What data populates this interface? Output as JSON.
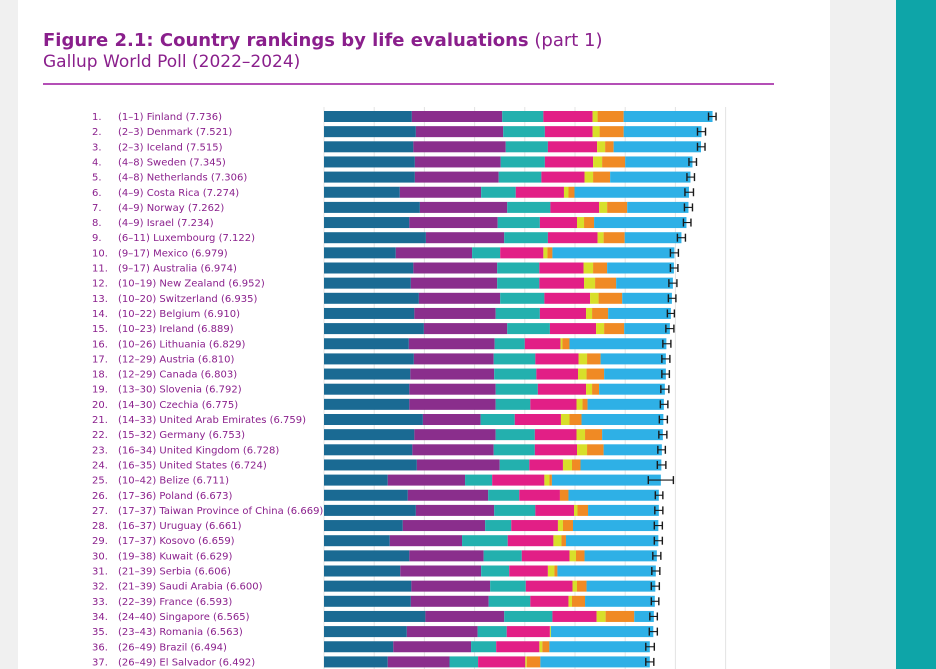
{
  "title_bold": "Figure 2.1: Country rankings by life evaluations",
  "title_part": "(part 1)",
  "subtitle": "Gallup World Poll (2022–2024)",
  "colors": {
    "title": "#8a1f8c",
    "segments": [
      "#1a6a93",
      "#8a2e8c",
      "#23b0ae",
      "#e21f86",
      "#d8df2a",
      "#f08a24",
      "#2eb0e6"
    ],
    "whisker": "#1a1a1a",
    "accent_strip": "#0ea5a8"
  },
  "chart_data": {
    "type": "bar",
    "stacked": true,
    "orientation": "horizontal",
    "title": "Figure 2.1: Country rankings by life evaluations (part 1)",
    "subtitle": "Gallup World Poll (2022–2024)",
    "xlim": [
      0,
      8
    ],
    "grid": true,
    "rows": [
      {
        "rank": "1.",
        "range": "(1–1)",
        "country": "Finland",
        "score": 7.736,
        "segments": [
          1.75,
          1.8,
          0.82,
          0.98,
          0.1,
          0.52,
          1.77
        ],
        "ci": [
          7.66,
          7.81
        ]
      },
      {
        "rank": "2.",
        "range": "(2–3)",
        "country": "Denmark",
        "score": 7.521,
        "segments": [
          1.83,
          1.74,
          0.83,
          0.95,
          0.14,
          0.48,
          1.55
        ],
        "ci": [
          7.44,
          7.6
        ]
      },
      {
        "rank": "3.",
        "range": "(2–3)",
        "country": "Iceland",
        "score": 7.515,
        "segments": [
          1.78,
          1.84,
          0.84,
          0.98,
          0.16,
          0.17,
          1.74
        ],
        "ci": [
          7.44,
          7.59
        ]
      },
      {
        "rank": "4.",
        "range": "(4–8)",
        "country": "Sweden",
        "score": 7.345,
        "segments": [
          1.81,
          1.71,
          0.88,
          0.96,
          0.18,
          0.46,
          1.34
        ],
        "ci": [
          7.27,
          7.42
        ]
      },
      {
        "rank": "5.",
        "range": "(4–8)",
        "country": "Netherlands",
        "score": 7.306,
        "segments": [
          1.81,
          1.67,
          0.85,
          0.86,
          0.17,
          0.34,
          1.6
        ],
        "ci": [
          7.23,
          7.38
        ]
      },
      {
        "rank": "6.",
        "range": "(4–9)",
        "country": "Costa Rica",
        "score": 7.274,
        "segments": [
          1.51,
          1.62,
          0.69,
          0.96,
          0.09,
          0.12,
          2.28
        ],
        "ci": [
          7.19,
          7.36
        ]
      },
      {
        "rank": "7.",
        "range": "(4–9)",
        "country": "Norway",
        "score": 7.262,
        "segments": [
          1.91,
          1.74,
          0.86,
          0.97,
          0.16,
          0.4,
          1.22
        ],
        "ci": [
          7.18,
          7.34
        ]
      },
      {
        "rank": "8.",
        "range": "(4–9)",
        "country": "Israel",
        "score": 7.234,
        "segments": [
          1.7,
          1.76,
          0.84,
          0.74,
          0.14,
          0.2,
          1.84
        ],
        "ci": [
          7.16,
          7.31
        ]
      },
      {
        "rank": "9.",
        "range": "(6–11)",
        "country": "Luxembourg",
        "score": 7.122,
        "segments": [
          2.03,
          1.56,
          0.87,
          0.99,
          0.12,
          0.42,
          1.13
        ],
        "ci": [
          7.04,
          7.2
        ]
      },
      {
        "rank": "10.",
        "range": "(9–17)",
        "country": "Mexico",
        "score": 6.979,
        "segments": [
          1.43,
          1.52,
          0.56,
          0.86,
          0.08,
          0.1,
          2.43
        ],
        "ci": [
          6.9,
          7.06
        ]
      },
      {
        "rank": "11.",
        "range": "(9–17)",
        "country": "Australia",
        "score": 6.974,
        "segments": [
          1.78,
          1.67,
          0.84,
          0.88,
          0.19,
          0.28,
          1.33
        ],
        "ci": [
          6.9,
          7.05
        ]
      },
      {
        "rank": "12.",
        "range": "(10–19)",
        "country": "New Zealand",
        "score": 6.952,
        "segments": [
          1.73,
          1.72,
          0.84,
          0.89,
          0.22,
          0.42,
          1.13
        ],
        "ci": [
          6.87,
          7.03
        ]
      },
      {
        "rank": "13.",
        "range": "(10–20)",
        "country": "Switzerland",
        "score": 6.935,
        "segments": [
          1.89,
          1.62,
          0.88,
          0.91,
          0.17,
          0.47,
          0.99
        ],
        "ci": [
          6.86,
          7.01
        ]
      },
      {
        "rank": "14.",
        "range": "(10–22)",
        "country": "Belgium",
        "score": 6.91,
        "segments": [
          1.8,
          1.62,
          0.88,
          0.92,
          0.12,
          0.32,
          1.25
        ],
        "ci": [
          6.84,
          6.98
        ]
      },
      {
        "rank": "15.",
        "range": "(10–23)",
        "country": "Ireland",
        "score": 6.889,
        "segments": [
          1.99,
          1.66,
          0.85,
          0.92,
          0.16,
          0.4,
          0.91
        ],
        "ci": [
          6.81,
          6.97
        ]
      },
      {
        "rank": "16.",
        "range": "(10–26)",
        "country": "Lithuania",
        "score": 6.829,
        "segments": [
          1.69,
          1.71,
          0.6,
          0.71,
          0.04,
          0.14,
          1.93
        ],
        "ci": [
          6.75,
          6.91
        ]
      },
      {
        "rank": "17.",
        "range": "(12–29)",
        "country": "Austria",
        "score": 6.81,
        "segments": [
          1.79,
          1.59,
          0.83,
          0.86,
          0.17,
          0.27,
          1.3
        ],
        "ci": [
          6.73,
          6.89
        ]
      },
      {
        "rank": "18.",
        "range": "(12–29)",
        "country": "Canada",
        "score": 6.803,
        "segments": [
          1.72,
          1.67,
          0.84,
          0.83,
          0.17,
          0.35,
          1.23
        ],
        "ci": [
          6.73,
          6.88
        ]
      },
      {
        "rank": "19.",
        "range": "(13–30)",
        "country": "Slovenia",
        "score": 6.792,
        "segments": [
          1.7,
          1.72,
          0.84,
          0.96,
          0.12,
          0.14,
          1.31
        ],
        "ci": [
          6.71,
          6.87
        ]
      },
      {
        "rank": "20.",
        "range": "(14–30)",
        "country": "Czechia",
        "score": 6.775,
        "segments": [
          1.7,
          1.72,
          0.69,
          0.92,
          0.12,
          0.1,
          1.52
        ],
        "ci": [
          6.7,
          6.85
        ]
      },
      {
        "rank": "21.",
        "range": "(14–33)",
        "country": "United Arab Emirates",
        "score": 6.759,
        "segments": [
          1.97,
          1.15,
          0.68,
          0.92,
          0.17,
          0.24,
          1.63
        ],
        "ci": [
          6.68,
          6.84
        ]
      },
      {
        "rank": "22.",
        "range": "(15–32)",
        "country": "Germany",
        "score": 6.753,
        "segments": [
          1.8,
          1.62,
          0.78,
          0.83,
          0.17,
          0.34,
          1.21
        ],
        "ci": [
          6.67,
          6.83
        ]
      },
      {
        "rank": "23.",
        "range": "(16–34)",
        "country": "United Kingdom",
        "score": 6.728,
        "segments": [
          1.76,
          1.62,
          0.82,
          0.84,
          0.2,
          0.33,
          1.16
        ],
        "ci": [
          6.65,
          6.8
        ]
      },
      {
        "rank": "24.",
        "range": "(16–35)",
        "country": "United States",
        "score": 6.724,
        "segments": [
          1.85,
          1.65,
          0.59,
          0.67,
          0.18,
          0.17,
          1.61
        ],
        "ci": [
          6.64,
          6.81
        ]
      },
      {
        "rank": "25.",
        "range": "(10–42)",
        "country": "Belize",
        "score": 6.711,
        "segments": [
          1.27,
          1.54,
          0.54,
          1.04,
          0.1,
          0.05,
          2.17
        ],
        "ci": [
          6.46,
          6.96
        ]
      },
      {
        "rank": "26.",
        "range": "(17–36)",
        "country": "Poland",
        "score": 6.673,
        "segments": [
          1.67,
          1.6,
          0.62,
          0.81,
          0.0,
          0.17,
          1.8
        ],
        "ci": [
          6.6,
          6.75
        ]
      },
      {
        "rank": "27.",
        "range": "(17–37)",
        "country": "Taiwan Province of China",
        "score": 6.669,
        "segments": [
          1.83,
          1.56,
          0.82,
          0.77,
          0.07,
          0.21,
          1.41
        ],
        "ci": [
          6.59,
          6.75
        ]
      },
      {
        "rank": "28.",
        "range": "(16–37)",
        "country": "Uruguay",
        "score": 6.661,
        "segments": [
          1.57,
          1.64,
          0.52,
          0.93,
          0.1,
          0.2,
          1.7
        ],
        "ci": [
          6.58,
          6.74
        ]
      },
      {
        "rank": "29.",
        "range": "(17–37)",
        "country": "Kosovo",
        "score": 6.659,
        "segments": [
          1.31,
          1.44,
          0.91,
          0.91,
          0.16,
          0.09,
          1.84
        ],
        "ci": [
          6.58,
          6.74
        ]
      },
      {
        "rank": "30.",
        "range": "(19–38)",
        "country": "Kuwait",
        "score": 6.629,
        "segments": [
          1.7,
          1.48,
          0.76,
          0.95,
          0.13,
          0.17,
          1.44
        ],
        "ci": [
          6.55,
          6.71
        ]
      },
      {
        "rank": "31.",
        "range": "(21–39)",
        "country": "Serbia",
        "score": 6.606,
        "segments": [
          1.52,
          1.61,
          0.56,
          0.77,
          0.13,
          0.06,
          1.96
        ],
        "ci": [
          6.53,
          6.69
        ]
      },
      {
        "rank": "32.",
        "range": "(21–39)",
        "country": "Saudi Arabia",
        "score": 6.6,
        "segments": [
          1.74,
          1.57,
          0.71,
          0.93,
          0.09,
          0.19,
          1.37
        ],
        "ci": [
          6.52,
          6.68
        ]
      },
      {
        "rank": "33.",
        "range": "(22–39)",
        "country": "France",
        "score": 6.593,
        "segments": [
          1.73,
          1.55,
          0.83,
          0.76,
          0.07,
          0.26,
          1.39
        ],
        "ci": [
          6.52,
          6.67
        ]
      },
      {
        "rank": "34.",
        "range": "(24–40)",
        "country": "Singapore",
        "score": 6.565,
        "segments": [
          2.02,
          1.57,
          0.96,
          0.88,
          0.18,
          0.57,
          0.39
        ],
        "ci": [
          6.49,
          6.64
        ]
      },
      {
        "rank": "35.",
        "range": "(23–43)",
        "country": "Romania",
        "score": 6.563,
        "segments": [
          1.65,
          1.41,
          0.58,
          0.86,
          0.02,
          0.0,
          2.04
        ],
        "ci": [
          6.48,
          6.64
        ]
      },
      {
        "rank": "36.",
        "range": "(26–49)",
        "country": "Brazil",
        "score": 6.494,
        "segments": [
          1.38,
          1.55,
          0.5,
          0.86,
          0.06,
          0.14,
          2.0
        ],
        "ci": [
          6.41,
          6.58
        ]
      },
      {
        "rank": "37.",
        "range": "(26–49)",
        "country": "El Salvador",
        "score": 6.492,
        "segments": [
          1.27,
          1.23,
          0.57,
          0.94,
          0.03,
          0.27,
          2.18
        ],
        "ci": [
          6.41,
          6.57
        ]
      }
    ]
  }
}
